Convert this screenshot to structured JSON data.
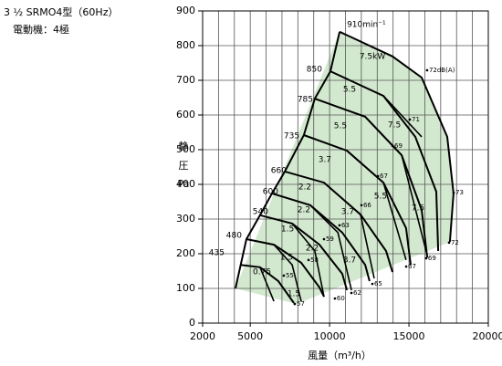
{
  "chart_data": {
    "type": "performance",
    "title": "3 ½ SRMO4型（60Hz）",
    "subtitle": "電動機：4極",
    "y_label": [
      "静",
      "圧",
      "Pa"
    ],
    "x_label": "風量（m³/h）",
    "xlim": [
      2000,
      20000
    ],
    "xticks": [
      2000,
      5000,
      10000,
      15000,
      20000
    ],
    "xgrid_step": 1000,
    "ylim": [
      0,
      900
    ],
    "yticks": [
      0,
      100,
      200,
      300,
      400,
      500,
      600,
      700,
      800,
      900
    ],
    "grid": true,
    "line_color": "#000000",
    "region_color": "#d3e9cf",
    "region": {
      "x": [
        4070,
        10630,
        13960,
        15800,
        17410,
        17810,
        17580,
        7920
      ],
      "y": [
        100,
        840,
        769,
        708,
        537,
        374,
        234,
        55
      ]
    },
    "boundary": {
      "x": [
        4070,
        4400,
        4760,
        5620,
        6370,
        7180,
        8380,
        9070,
        10050,
        10630
      ],
      "y": [
        100,
        168,
        242,
        311,
        374,
        437,
        542,
        647,
        726,
        840
      ]
    },
    "curves": [
      {
        "x": [
          10630,
          13960,
          15800,
          17410,
          17810,
          17580
        ],
        "y": [
          840,
          769,
          708,
          537,
          374,
          234
        ]
      },
      {
        "x": [
          10050,
          13390,
          15400,
          16720,
          16840
        ],
        "y": [
          726,
          655,
          537,
          379,
          208
        ]
      },
      {
        "x": [
          9070,
          12240,
          14540,
          15800,
          16150
        ],
        "y": [
          647,
          595,
          484,
          326,
          189
        ]
      },
      {
        "x": [
          8380,
          11090,
          13390,
          14820,
          15110
        ],
        "y": [
          542,
          497,
          405,
          274,
          168
        ]
      },
      {
        "x": [
          7180,
          9650,
          11950,
          13560,
          13960
        ],
        "y": [
          437,
          405,
          313,
          208,
          147
        ]
      },
      {
        "x": [
          6370,
          8780,
          10800,
          12240,
          12520
        ],
        "y": [
          374,
          340,
          261,
          168,
          121
        ]
      },
      {
        "x": [
          5620,
          7640,
          9360,
          10800,
          11090
        ],
        "y": [
          311,
          287,
          226,
          142,
          95
        ]
      },
      {
        "x": [
          4760,
          6490,
          8210,
          9360,
          9650
        ],
        "y": [
          242,
          226,
          174,
          103,
          76
        ]
      },
      {
        "x": [
          4400,
          5620,
          6770,
          7750
        ],
        "y": [
          168,
          161,
          121,
          58
        ]
      }
    ],
    "power_lines": [
      {
        "x": [
          5620,
          6490
        ],
        "y": [
          161,
          63
        ]
      },
      {
        "x": [
          6490,
          7640,
          8210
        ],
        "y": [
          226,
          168,
          63
        ]
      },
      {
        "x": [
          7640,
          9070,
          9650
        ],
        "y": [
          287,
          208,
          76
        ]
      },
      {
        "x": [
          8780,
          10520,
          11380
        ],
        "y": [
          340,
          261,
          95
        ]
      },
      {
        "x": [
          9650,
          11950,
          12810
        ],
        "y": [
          405,
          313,
          129
        ]
      },
      {
        "x": [
          11090,
          13390,
          14820
        ],
        "y": [
          497,
          405,
          182
        ]
      },
      {
        "x": [
          12240,
          14540,
          16150
        ],
        "y": [
          595,
          484,
          195
        ]
      },
      {
        "x": [
          13390,
          15800
        ],
        "y": [
          655,
          537
        ]
      }
    ],
    "rpm_labels": [
      {
        "text": "910min⁻¹",
        "x": 11090,
        "y": 861
      },
      {
        "text": "850",
        "x": 9530,
        "y": 732
      },
      {
        "text": "785",
        "x": 8960,
        "y": 645
      },
      {
        "text": "735",
        "x": 8100,
        "y": 540
      },
      {
        "text": "660",
        "x": 7290,
        "y": 440
      },
      {
        "text": "600",
        "x": 6770,
        "y": 379
      },
      {
        "text": "540",
        "x": 6140,
        "y": 321
      },
      {
        "text": "480",
        "x": 4470,
        "y": 253
      },
      {
        "text": "435",
        "x": 3380,
        "y": 203
      }
    ],
    "power_labels": [
      {
        "text": "7.5kW",
        "x": 12700,
        "y": 769
      },
      {
        "text": "5.5",
        "x": 11260,
        "y": 674
      },
      {
        "text": "5.5",
        "x": 10680,
        "y": 569
      },
      {
        "text": "7.5",
        "x": 14080,
        "y": 571
      },
      {
        "text": "3.7",
        "x": 9700,
        "y": 471
      },
      {
        "text": "2.2",
        "x": 8440,
        "y": 392
      },
      {
        "text": "5.5",
        "x": 13210,
        "y": 366
      },
      {
        "text": "2.2",
        "x": 8380,
        "y": 326
      },
      {
        "text": "3.7",
        "x": 11140,
        "y": 321
      },
      {
        "text": "7.5",
        "x": 15570,
        "y": 332
      },
      {
        "text": "1.5",
        "x": 7350,
        "y": 271
      },
      {
        "text": "2.2",
        "x": 8900,
        "y": 216
      },
      {
        "text": "1.5",
        "x": 7290,
        "y": 190
      },
      {
        "text": "3.7",
        "x": 11260,
        "y": 182
      },
      {
        "text": "0.75",
        "x": 5740,
        "y": 147
      },
      {
        "text": "1.5",
        "x": 7750,
        "y": 84
      }
    ],
    "noise_labels": [
      {
        "text": "72dB(A)",
        "x": 16260,
        "y": 729
      },
      {
        "text": "71",
        "x": 15170,
        "y": 587
      },
      {
        "text": "69",
        "x": 14080,
        "y": 511
      },
      {
        "text": "67",
        "x": 13160,
        "y": 424
      },
      {
        "text": "66",
        "x": 12120,
        "y": 340
      },
      {
        "text": "63",
        "x": 10740,
        "y": 282
      },
      {
        "text": "59",
        "x": 9760,
        "y": 242
      },
      {
        "text": "58",
        "x": 8790,
        "y": 182
      },
      {
        "text": "55",
        "x": 7230,
        "y": 137
      },
      {
        "text": "57",
        "x": 7920,
        "y": 55
      },
      {
        "text": "60",
        "x": 10450,
        "y": 71
      },
      {
        "text": "62",
        "x": 11490,
        "y": 87
      },
      {
        "text": "65",
        "x": 12810,
        "y": 113
      },
      {
        "text": "67",
        "x": 14940,
        "y": 163
      },
      {
        "text": "69",
        "x": 16200,
        "y": 187
      },
      {
        "text": "72",
        "x": 17640,
        "y": 232
      },
      {
        "text": "73",
        "x": 17930,
        "y": 376
      }
    ]
  }
}
